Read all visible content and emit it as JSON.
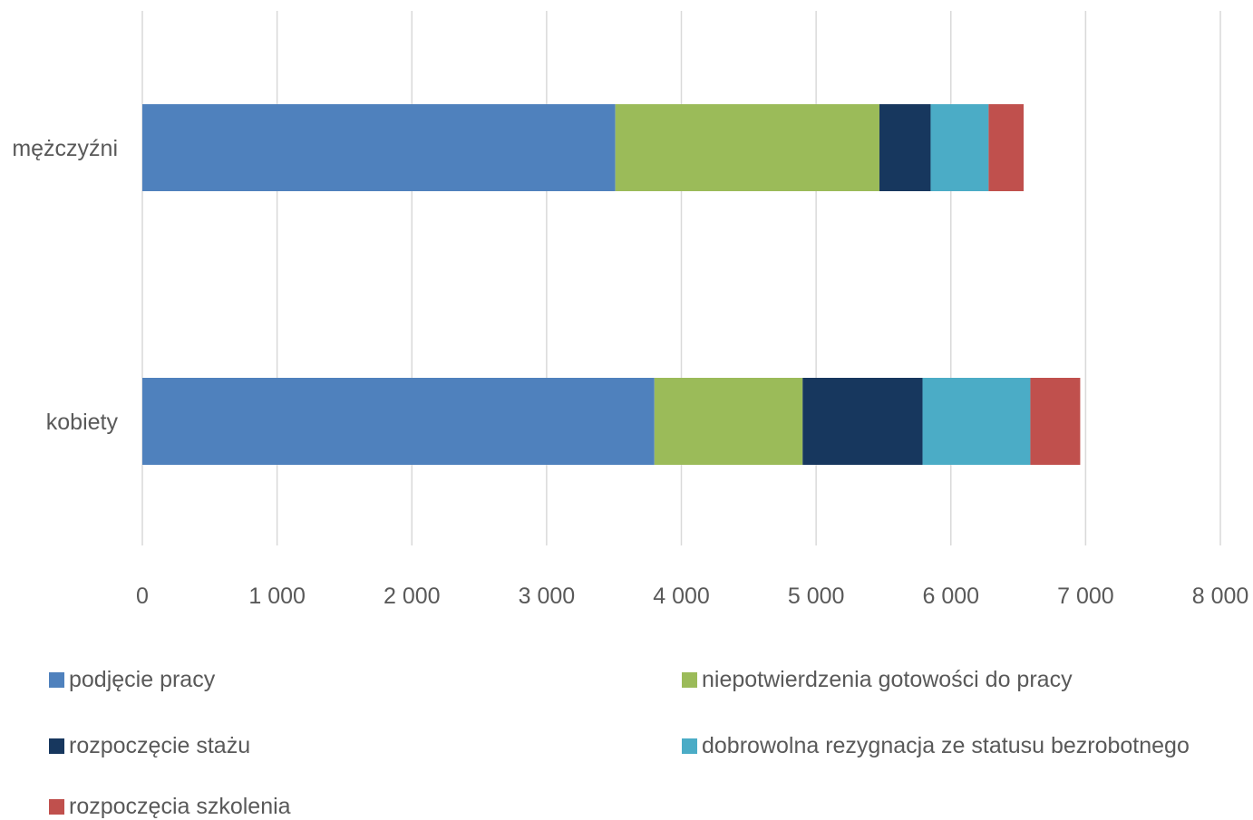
{
  "chart_data": {
    "type": "bar",
    "orientation": "horizontal",
    "stacked": true,
    "categories": [
      "mężczyźni",
      "kobiety"
    ],
    "series": [
      {
        "name": "podjęcie pracy",
        "color": "#4F81BD",
        "values": [
          3510,
          3800
        ]
      },
      {
        "name": "niepotwierdzenia gotowości do pracy",
        "color": "#9BBB59",
        "values": [
          1960,
          1100
        ]
      },
      {
        "name": "rozpoczęcie stażu",
        "color": "#17375E",
        "values": [
          380,
          890
        ]
      },
      {
        "name": "dobrowolna rezygnacja ze statusu bezrobotnego",
        "color": "#4BACC6",
        "values": [
          430,
          800
        ]
      },
      {
        "name": "rozpoczęcia szkolenia",
        "color": "#C0504D",
        "values": [
          260,
          370
        ]
      }
    ],
    "xlim": [
      0,
      8000
    ],
    "xticks": [
      0,
      1000,
      2000,
      3000,
      4000,
      5000,
      6000,
      7000,
      8000
    ],
    "xtick_labels": [
      "0",
      "1 000",
      "2 000",
      "3 000",
      "4 000",
      "5 000",
      "6 000",
      "7 000",
      "8 000"
    ],
    "grid": true,
    "legend_position": "bottom",
    "title": "",
    "xlabel": "",
    "ylabel": "",
    "colors": {
      "grid": "#D9D9D9",
      "text": "#595959"
    }
  }
}
